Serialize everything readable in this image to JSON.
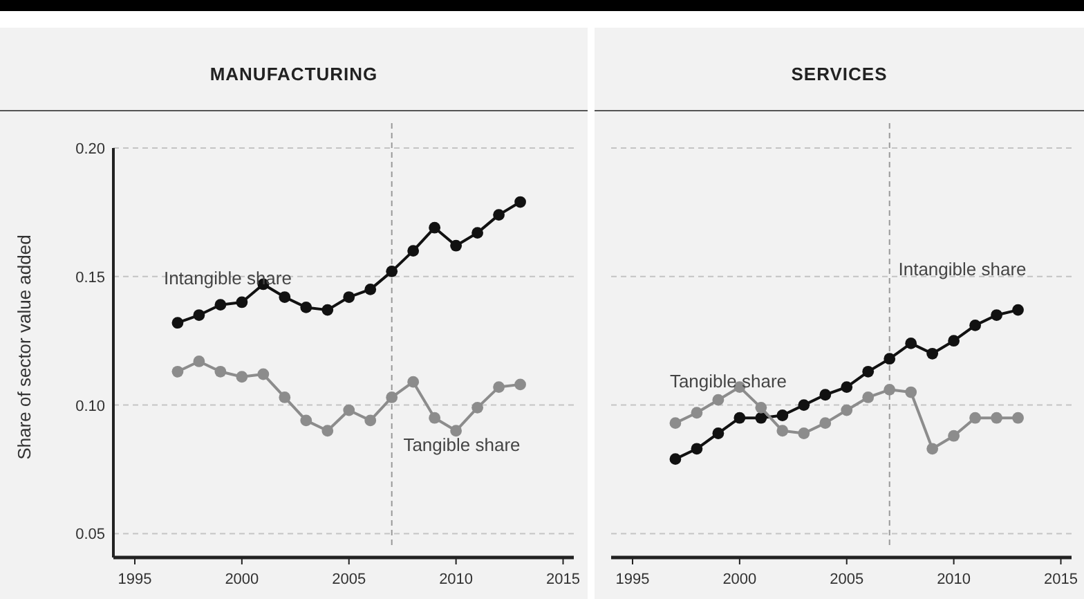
{
  "chart_data": [
    {
      "type": "line",
      "title": "MANUFACTURING",
      "ylabel": "Share of sector value added",
      "x": [
        1997,
        1998,
        1999,
        2000,
        2001,
        2002,
        2003,
        2004,
        2005,
        2006,
        2007,
        2008,
        2009,
        2010,
        2011,
        2012,
        2013
      ],
      "series": [
        {
          "name": "Intangible share",
          "color": "#111111",
          "values": [
            0.132,
            0.135,
            0.139,
            0.14,
            0.147,
            0.142,
            0.138,
            0.137,
            0.142,
            0.145,
            0.152,
            0.16,
            0.169,
            0.162,
            0.167,
            0.174,
            0.179
          ]
        },
        {
          "name": "Tangible share",
          "color": "#8c8c8c",
          "values": [
            0.113,
            0.117,
            0.113,
            0.111,
            0.112,
            0.103,
            0.094,
            0.09,
            0.098,
            0.094,
            0.103,
            0.109,
            0.095,
            0.09,
            0.099,
            0.107,
            0.108
          ]
        }
      ],
      "xlim": [
        1994,
        2015.5
      ],
      "xticks": [
        1995,
        2000,
        2005,
        2010,
        2015
      ],
      "ylim": [
        0.045,
        0.2
      ],
      "yticks": [
        {
          "value": 0.05,
          "label": "0.05"
        },
        {
          "value": 0.1,
          "label": "0.10"
        },
        {
          "value": 0.15,
          "label": "0.15"
        },
        {
          "value": 0.2,
          "label": "0.20"
        }
      ],
      "grid": "y",
      "marker": "circle",
      "line_style": "solid",
      "ref_lines": [
        {
          "axis": "x",
          "value": 2007,
          "line_style": "dashed"
        }
      ]
    },
    {
      "type": "line",
      "title": "SERVICES",
      "x": [
        1997,
        1998,
        1999,
        2000,
        2001,
        2002,
        2003,
        2004,
        2005,
        2006,
        2007,
        2008,
        2009,
        2010,
        2011,
        2012,
        2013
      ],
      "series": [
        {
          "name": "Intangible share",
          "color": "#111111",
          "values": [
            0.079,
            0.083,
            0.089,
            0.095,
            0.095,
            0.096,
            0.1,
            0.104,
            0.107,
            0.113,
            0.118,
            0.124,
            0.12,
            0.125,
            0.131,
            0.135,
            0.137
          ]
        },
        {
          "name": "Tangible share",
          "color": "#8c8c8c",
          "values": [
            0.093,
            0.097,
            0.102,
            0.107,
            0.099,
            0.09,
            0.089,
            0.093,
            0.098,
            0.103,
            0.106,
            0.105,
            0.083,
            0.088,
            0.095,
            0.095,
            0.095
          ]
        }
      ],
      "xlim": [
        1994,
        2015.5
      ],
      "xticks": [
        1995,
        2000,
        2005,
        2010,
        2015
      ],
      "ylim": [
        0.045,
        0.2
      ],
      "yticks": [
        {
          "value": 0.05,
          "label": null
        },
        {
          "value": 0.1,
          "label": null
        },
        {
          "value": 0.15,
          "label": null
        },
        {
          "value": 0.2,
          "label": null
        }
      ],
      "tick_labels": "x",
      "grid": "y",
      "marker": "circle",
      "line_style": "solid",
      "ref_lines": [
        {
          "axis": "x",
          "value": 2007,
          "line_style": "dashed"
        }
      ]
    }
  ]
}
